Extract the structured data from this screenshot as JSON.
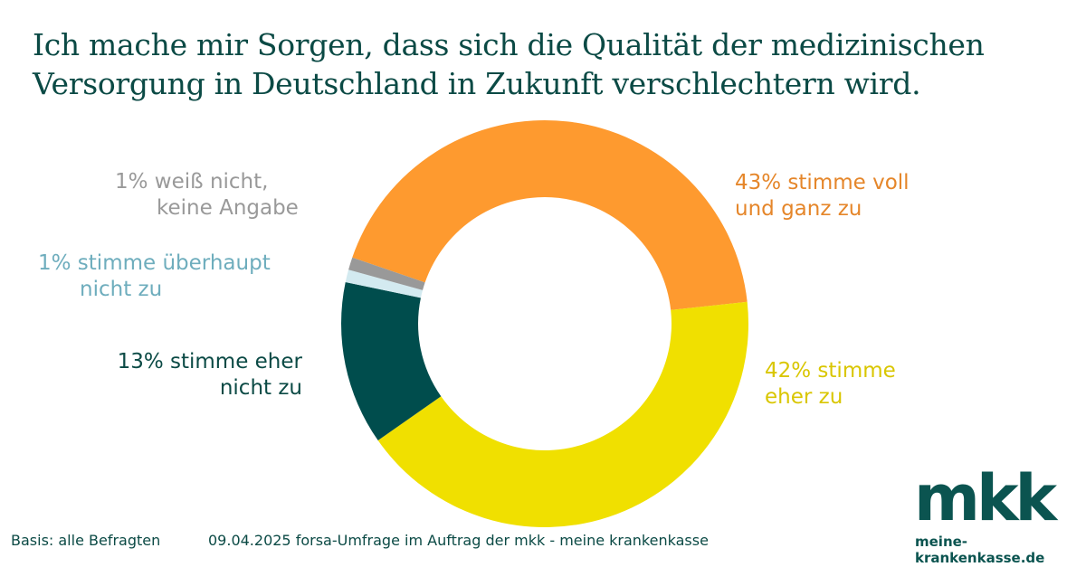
{
  "chart_data": {
    "type": "pie",
    "donut": true,
    "title": "Ich mache mir Sorgen, dass sich die Qualität der medizinischen Versorgung in Deutschland in Zukunft verschlechtern wird.",
    "title_lines": [
      "Ich mache mir Sorgen, dass sich die Qualität der medizinischen",
      "Versorgung in Deutschland in Zukunft verschlechtern wird."
    ],
    "start_angle_deg": -71,
    "slices": [
      {
        "label": "stimme voll und ganz zu",
        "value": 43,
        "color": "#fe9a2f",
        "text_color": "#e5862a",
        "line1": "43% stimme voll",
        "line2": "und ganz zu"
      },
      {
        "label": "stimme eher zu",
        "value": 42,
        "color": "#f0e000",
        "text_color": "#d9c600",
        "line1": "42% stimme",
        "line2": "eher zu"
      },
      {
        "label": "stimme eher nicht zu",
        "value": 13,
        "color": "#004d4d",
        "text_color": "#0b4a45",
        "line1": "13% stimme eher",
        "line2": "nicht zu"
      },
      {
        "label": "stimme überhaupt nicht zu",
        "value": 1,
        "color": "#d3eaf0",
        "text_color": "#6eadbd",
        "line1": "1% stimme überhaupt",
        "line2": "nicht zu"
      },
      {
        "label": "weiß nicht, keine Angabe",
        "value": 1,
        "color": "#999999",
        "text_color": "#999999",
        "line1": "1% weiß nicht,",
        "line2": "keine Angabe"
      }
    ]
  },
  "footer": {
    "basis": "Basis: alle Befragten",
    "source": "09.04.2025 forsa-Umfrage im Auftrag der mkk - meine krankenkasse"
  },
  "logo": {
    "text": "mkk",
    "url": "meine-krankenkasse.de"
  }
}
